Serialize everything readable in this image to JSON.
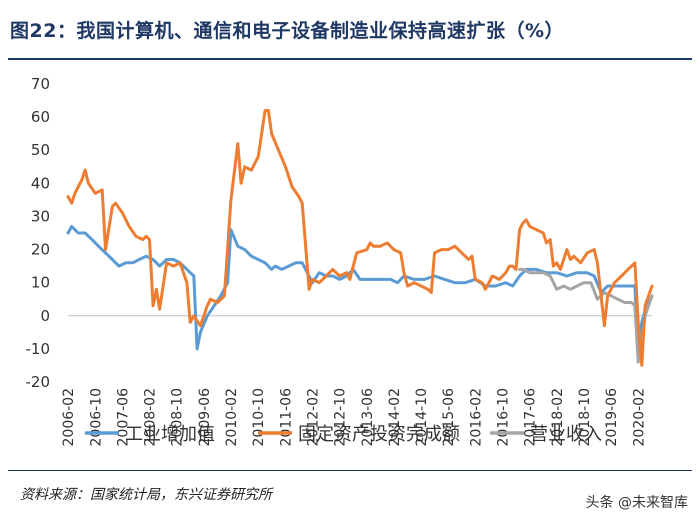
{
  "title": "图22：我国计算机、通信和电子设备制造业保持高速扩张（%）",
  "source": "资料来源：国家统计局，东兴证券研究所",
  "watermark": "头条 @未来智库",
  "chart_data": {
    "type": "line",
    "title": "图22：我国计算机、通信和电子设备制造业保持高速扩张（%）",
    "ylim": [
      -20,
      70
    ],
    "yticks": [
      -20,
      -10,
      0,
      10,
      20,
      30,
      40,
      50,
      60,
      70
    ],
    "xlim": [
      2006.08,
      2020.42
    ],
    "xticks": [
      "2006-02",
      "2006-10",
      "2007-06",
      "2008-02",
      "2008-10",
      "2009-06",
      "2010-02",
      "2010-10",
      "2011-06",
      "2012-02",
      "2012-10",
      "2013-06",
      "2014-02",
      "2014-10",
      "2015-06",
      "2016-02",
      "2016-10",
      "2017-06",
      "2018-02",
      "2018-10",
      "2019-06",
      "2020-02"
    ],
    "legend_position": "bottom",
    "grid": false,
    "series": [
      {
        "name": "工业增加值",
        "color": "#5b9bd5",
        "points": [
          [
            2006.08,
            25
          ],
          [
            2006.17,
            27
          ],
          [
            2006.33,
            25
          ],
          [
            2006.5,
            25
          ],
          [
            2006.67,
            23
          ],
          [
            2006.83,
            21
          ],
          [
            2007.0,
            19
          ],
          [
            2007.17,
            17
          ],
          [
            2007.33,
            15
          ],
          [
            2007.5,
            16
          ],
          [
            2007.67,
            16
          ],
          [
            2007.83,
            17
          ],
          [
            2008.0,
            18
          ],
          [
            2008.17,
            17
          ],
          [
            2008.33,
            15
          ],
          [
            2008.5,
            17
          ],
          [
            2008.67,
            17
          ],
          [
            2008.83,
            16
          ],
          [
            2009.0,
            14
          ],
          [
            2009.17,
            12
          ],
          [
            2009.25,
            -10
          ],
          [
            2009.33,
            -5
          ],
          [
            2009.5,
            0
          ],
          [
            2009.67,
            3
          ],
          [
            2009.83,
            6
          ],
          [
            2010.0,
            10
          ],
          [
            2010.08,
            26
          ],
          [
            2010.25,
            21
          ],
          [
            2010.42,
            20
          ],
          [
            2010.58,
            18
          ],
          [
            2010.75,
            17
          ],
          [
            2010.92,
            16
          ],
          [
            2011.08,
            14
          ],
          [
            2011.17,
            15
          ],
          [
            2011.33,
            14
          ],
          [
            2011.5,
            15
          ],
          [
            2011.67,
            16
          ],
          [
            2011.83,
            16
          ],
          [
            2012.08,
            10
          ],
          [
            2012.25,
            13
          ],
          [
            2012.42,
            12
          ],
          [
            2012.58,
            12
          ],
          [
            2012.75,
            11
          ],
          [
            2012.92,
            12
          ],
          [
            2013.08,
            14
          ],
          [
            2013.25,
            11
          ],
          [
            2013.5,
            11
          ],
          [
            2013.75,
            11
          ],
          [
            2014.0,
            11
          ],
          [
            2014.17,
            10
          ],
          [
            2014.33,
            12
          ],
          [
            2014.58,
            11
          ],
          [
            2014.83,
            11
          ],
          [
            2015.08,
            12
          ],
          [
            2015.33,
            11
          ],
          [
            2015.58,
            10
          ],
          [
            2015.83,
            10
          ],
          [
            2016.08,
            11
          ],
          [
            2016.33,
            9
          ],
          [
            2016.58,
            9
          ],
          [
            2016.83,
            10
          ],
          [
            2017.0,
            9
          ],
          [
            2017.17,
            12
          ],
          [
            2017.33,
            14
          ],
          [
            2017.58,
            14
          ],
          [
            2017.83,
            13
          ],
          [
            2018.08,
            13
          ],
          [
            2018.33,
            12
          ],
          [
            2018.58,
            13
          ],
          [
            2018.83,
            13
          ],
          [
            2019.0,
            12
          ],
          [
            2019.17,
            7
          ],
          [
            2019.33,
            9
          ],
          [
            2019.5,
            9
          ],
          [
            2019.75,
            9
          ],
          [
            2020.0,
            9
          ],
          [
            2020.08,
            -12
          ],
          [
            2020.17,
            -2
          ],
          [
            2020.33,
            5
          ]
        ]
      },
      {
        "name": "固定资产投资完成额",
        "color": "#ed7d31",
        "points": [
          [
            2006.08,
            36
          ],
          [
            2006.17,
            34
          ],
          [
            2006.25,
            37
          ],
          [
            2006.42,
            41
          ],
          [
            2006.5,
            44
          ],
          [
            2006.58,
            40
          ],
          [
            2006.75,
            37
          ],
          [
            2006.92,
            38
          ],
          [
            2007.0,
            20
          ],
          [
            2007.17,
            33
          ],
          [
            2007.25,
            34
          ],
          [
            2007.42,
            31
          ],
          [
            2007.58,
            27
          ],
          [
            2007.75,
            24
          ],
          [
            2007.92,
            23
          ],
          [
            2008.0,
            24
          ],
          [
            2008.08,
            23
          ],
          [
            2008.17,
            3
          ],
          [
            2008.25,
            8
          ],
          [
            2008.33,
            2
          ],
          [
            2008.5,
            16
          ],
          [
            2008.67,
            15
          ],
          [
            2008.83,
            16
          ],
          [
            2009.0,
            10
          ],
          [
            2009.08,
            -2
          ],
          [
            2009.17,
            0
          ],
          [
            2009.33,
            -3
          ],
          [
            2009.5,
            3
          ],
          [
            2009.58,
            5
          ],
          [
            2009.75,
            4
          ],
          [
            2009.92,
            6
          ],
          [
            2010.08,
            35
          ],
          [
            2010.17,
            44
          ],
          [
            2010.25,
            52
          ],
          [
            2010.33,
            40
          ],
          [
            2010.42,
            45
          ],
          [
            2010.58,
            44
          ],
          [
            2010.75,
            48
          ],
          [
            2010.92,
            62
          ],
          [
            2011.0,
            62
          ],
          [
            2011.08,
            55
          ],
          [
            2011.25,
            50
          ],
          [
            2011.42,
            45
          ],
          [
            2011.58,
            39
          ],
          [
            2011.75,
            36
          ],
          [
            2011.83,
            34
          ],
          [
            2012.0,
            8
          ],
          [
            2012.08,
            11
          ],
          [
            2012.25,
            10
          ],
          [
            2012.42,
            12
          ],
          [
            2012.58,
            14
          ],
          [
            2012.75,
            12
          ],
          [
            2012.92,
            13
          ],
          [
            2013.0,
            11
          ],
          [
            2013.17,
            19
          ],
          [
            2013.42,
            20
          ],
          [
            2013.5,
            22
          ],
          [
            2013.58,
            21
          ],
          [
            2013.75,
            21
          ],
          [
            2013.92,
            22
          ],
          [
            2014.08,
            20
          ],
          [
            2014.25,
            19
          ],
          [
            2014.33,
            13
          ],
          [
            2014.42,
            9
          ],
          [
            2014.58,
            10
          ],
          [
            2014.75,
            9
          ],
          [
            2014.92,
            8
          ],
          [
            2015.0,
            7
          ],
          [
            2015.08,
            19
          ],
          [
            2015.25,
            20
          ],
          [
            2015.42,
            20
          ],
          [
            2015.58,
            21
          ],
          [
            2015.75,
            19
          ],
          [
            2015.92,
            17
          ],
          [
            2016.0,
            18
          ],
          [
            2016.08,
            11
          ],
          [
            2016.25,
            10
          ],
          [
            2016.33,
            8
          ],
          [
            2016.5,
            12
          ],
          [
            2016.67,
            11
          ],
          [
            2016.83,
            13
          ],
          [
            2016.92,
            15
          ],
          [
            2017.0,
            15
          ],
          [
            2017.08,
            14
          ],
          [
            2017.17,
            26
          ],
          [
            2017.25,
            28
          ],
          [
            2017.33,
            29
          ],
          [
            2017.42,
            27
          ],
          [
            2017.58,
            26
          ],
          [
            2017.75,
            25
          ],
          [
            2017.83,
            22
          ],
          [
            2017.92,
            23
          ],
          [
            2018.0,
            15
          ],
          [
            2018.08,
            16
          ],
          [
            2018.17,
            14
          ],
          [
            2018.33,
            20
          ],
          [
            2018.42,
            17
          ],
          [
            2018.5,
            18
          ],
          [
            2018.67,
            16
          ],
          [
            2018.83,
            19
          ],
          [
            2019.0,
            20
          ],
          [
            2019.08,
            16
          ],
          [
            2019.25,
            -3
          ],
          [
            2019.33,
            6
          ],
          [
            2019.5,
            10
          ],
          [
            2019.67,
            12
          ],
          [
            2019.83,
            14
          ],
          [
            2019.92,
            15
          ],
          [
            2020.0,
            16
          ],
          [
            2020.08,
            -2
          ],
          [
            2020.17,
            -15
          ],
          [
            2020.25,
            3
          ],
          [
            2020.42,
            9
          ]
        ]
      },
      {
        "name": "营业收入",
        "color": "#a5a5a5",
        "points": [
          [
            2017.17,
            14
          ],
          [
            2017.25,
            14
          ],
          [
            2017.42,
            13
          ],
          [
            2017.58,
            13
          ],
          [
            2017.75,
            13
          ],
          [
            2017.92,
            12
          ],
          [
            2018.08,
            8
          ],
          [
            2018.25,
            9
          ],
          [
            2018.42,
            8
          ],
          [
            2018.58,
            9
          ],
          [
            2018.75,
            10
          ],
          [
            2018.92,
            10
          ],
          [
            2019.08,
            5
          ],
          [
            2019.25,
            7
          ],
          [
            2019.42,
            6
          ],
          [
            2019.58,
            5
          ],
          [
            2019.75,
            4
          ],
          [
            2019.92,
            4
          ],
          [
            2020.0,
            3
          ],
          [
            2020.08,
            -14
          ],
          [
            2020.17,
            -8
          ],
          [
            2020.25,
            0
          ],
          [
            2020.42,
            6
          ]
        ]
      }
    ]
  }
}
